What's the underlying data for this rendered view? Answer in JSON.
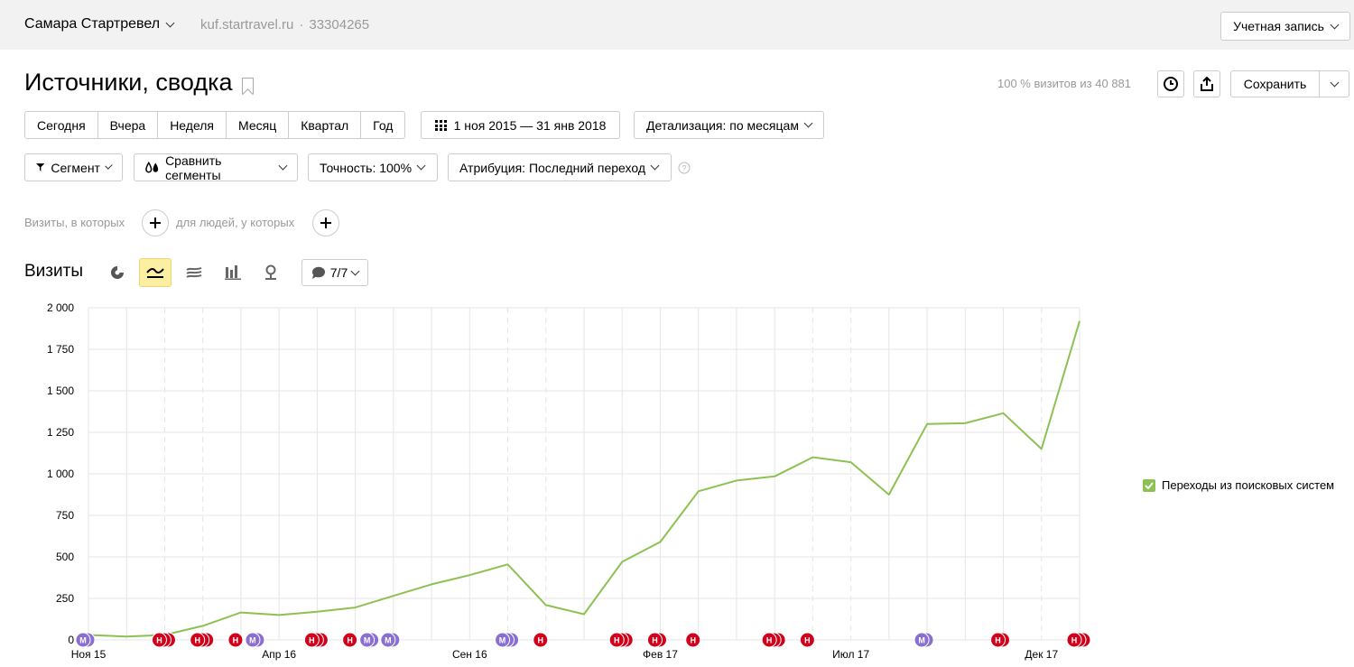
{
  "header": {
    "counter_name": "Самара Стартревел",
    "site": "kuf.startravel.ru",
    "separator": "·",
    "counter_id": "33304265",
    "account_label": "Учетная запись"
  },
  "report": {
    "title": "Источники, сводка",
    "visits_share": "100 % визитов из 40 881",
    "save_label": "Сохранить"
  },
  "periods": [
    "Сегодня",
    "Вчера",
    "Неделя",
    "Месяц",
    "Квартал",
    "Год"
  ],
  "date_range": "1 ноя 2015 — 31 янв 2018",
  "detail_label": "Детализация: по месяцам",
  "filters": {
    "segment": "Сегмент",
    "compare": "Сравнить сегменты",
    "accuracy": "Точность: 100%",
    "attribution": "Атрибуция: Последний переход"
  },
  "segment_row": {
    "visits_label": "Визиты, в которых",
    "people_label": "для людей, у которых"
  },
  "chart_header": {
    "title": "Визиты",
    "notes_label": "7/7"
  },
  "colors": {
    "line": "#8dc152",
    "note_red": "#d0021b",
    "note_purple": "#8a6fd1"
  },
  "chart_data": {
    "type": "line",
    "x": [
      "2015-11",
      "2015-12",
      "2016-01",
      "2016-02",
      "2016-03",
      "2016-04",
      "2016-05",
      "2016-06",
      "2016-07",
      "2016-08",
      "2016-09",
      "2016-10",
      "2016-11",
      "2016-12",
      "2017-01",
      "2017-02",
      "2017-03",
      "2017-04",
      "2017-05",
      "2017-06",
      "2017-07",
      "2017-08",
      "2017-09",
      "2017-10",
      "2017-11",
      "2017-12",
      "2018-01"
    ],
    "x_tick_labels": [
      {
        "index": 0,
        "label": "Ноя 15"
      },
      {
        "index": 5,
        "label": "Апр 16"
      },
      {
        "index": 10,
        "label": "Сен 16"
      },
      {
        "index": 15,
        "label": "Фев 17"
      },
      {
        "index": 20,
        "label": "Июл 17"
      },
      {
        "index": 25,
        "label": "Дек 17"
      }
    ],
    "series": [
      {
        "name": "Переходы из поисковых систем",
        "values": [
          30,
          20,
          30,
          85,
          165,
          150,
          170,
          195,
          265,
          335,
          390,
          455,
          210,
          155,
          470,
          590,
          895,
          960,
          985,
          1100,
          1070,
          875,
          1300,
          1305,
          1365,
          1150,
          1920
        ]
      }
    ],
    "ylim": [
      0,
      2000
    ],
    "y_ticks": [
      0,
      250,
      500,
      750,
      1000,
      1250,
      1500,
      1750,
      2000
    ],
    "y_tick_labels": [
      "0",
      "250",
      "500",
      "750",
      "1 000",
      "1 250",
      "1 500",
      "1 750",
      "2 000"
    ],
    "dashed_gridline_indices": [
      2,
      3,
      11,
      12,
      19,
      20,
      25
    ],
    "grid": true,
    "legend_position": "right",
    "annotations": [
      {
        "index": 0,
        "type": "М",
        "count": 2
      },
      {
        "index": 2,
        "type": "Н",
        "count": 3
      },
      {
        "index": 3,
        "type": "Н",
        "count": 3
      },
      {
        "index": 4,
        "type": "Н",
        "count": 1
      },
      {
        "index": 4,
        "type": "М",
        "count": 2
      },
      {
        "index": 6,
        "type": "Н",
        "count": 3
      },
      {
        "index": 7,
        "type": "Н",
        "count": 1
      },
      {
        "index": 7,
        "type": "М",
        "count": 2
      },
      {
        "index": 8,
        "type": "М",
        "count": 2
      },
      {
        "index": 11,
        "type": "М",
        "count": 3
      },
      {
        "index": 12,
        "type": "Н",
        "count": 1
      },
      {
        "index": 14,
        "type": "Н",
        "count": 3
      },
      {
        "index": 15,
        "type": "Н",
        "count": 2
      },
      {
        "index": 16,
        "type": "Н",
        "count": 1
      },
      {
        "index": 18,
        "type": "Н",
        "count": 3
      },
      {
        "index": 19,
        "type": "Н",
        "count": 1
      },
      {
        "index": 22,
        "type": "М",
        "count": 2
      },
      {
        "index": 24,
        "type": "Н",
        "count": 2
      },
      {
        "index": 26,
        "type": "Н",
        "count": 3
      }
    ]
  }
}
